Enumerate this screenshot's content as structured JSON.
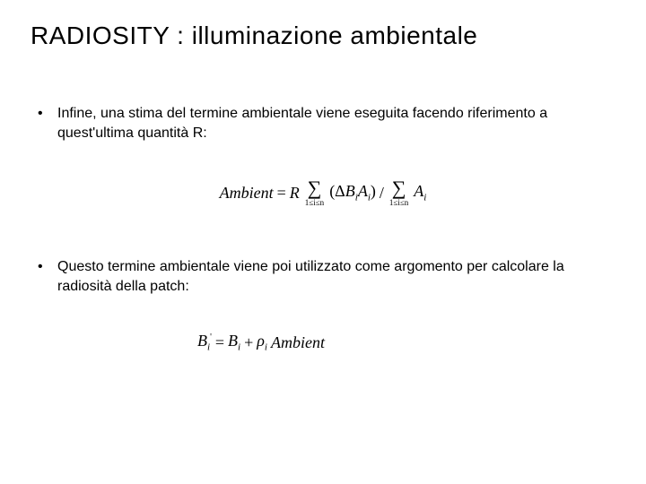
{
  "title": "RADIOSITY : illuminazione ambientale",
  "bullets": [
    "Infine, una stima del termine ambientale viene eseguita facendo riferimento a quest'ultima quantità R:",
    "Questo termine ambientale viene poi utilizzato come argomento per calcolare la radiosità della patch:"
  ],
  "formula1": {
    "lhs": "Ambient",
    "eq": "=",
    "R": "R",
    "sigma_sub": "1≤i≤n",
    "term1_open": "(Δ",
    "term1_B": "B",
    "term1_Bi": "i",
    "term1_A": "A",
    "term1_Ai": "i",
    "term1_close": ")",
    "slash": "/",
    "term2_A": "A",
    "term2_Ai": "i"
  },
  "formula2": {
    "B": "B",
    "i": "i",
    "prime": "'",
    "eq": "=",
    "B2": "B",
    "i2": "i",
    "plus": "+",
    "rho": "ρ",
    "i3": "i",
    "amb": "Ambient"
  },
  "colors": {
    "bg": "#ffffff",
    "text": "#000000"
  },
  "fonts": {
    "title_size": 28,
    "body_size": 16,
    "formula_size": 18
  }
}
